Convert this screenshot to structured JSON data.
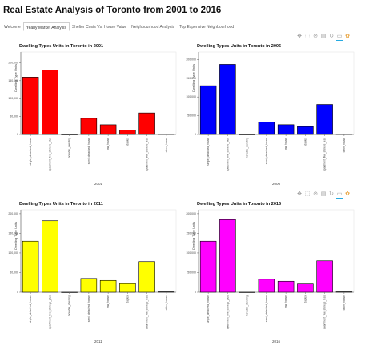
{
  "page_title": "Real Estate Analysis of Toronto from 2001 to 2016",
  "tabs": [
    {
      "label": "Welcome",
      "active": false
    },
    {
      "label": "Yearly Market Analysis",
      "active": true
    },
    {
      "label": "Shelter Costs Vs. House Value",
      "active": false
    },
    {
      "label": "Neighbourhood Analysis",
      "active": false
    },
    {
      "label": "Top Expensive Neighbourhood",
      "active": false
    }
  ],
  "toolbar_icons": [
    "pan-icon",
    "box-zoom-icon",
    "wheel-zoom-icon",
    "save-icon",
    "reset-icon",
    "hover-icon",
    "bokeh-logo-icon"
  ],
  "chart_data": [
    {
      "type": "bar",
      "title": "Dwelling Types Units in Toronto in 2001",
      "xlabel": "2001",
      "ylabel": "Dwelling Type Units",
      "color": "#ff0000",
      "ylim": [
        0,
        230000
      ],
      "ytick_labels": [
        "0",
        "50,000",
        "100,000",
        "150,000",
        "200,000"
      ],
      "categories": [
        "single_detached_house",
        "apartment_five_storeys_plus",
        "movable_dwelling",
        "semi_detached_house",
        "row_house",
        "duplex",
        "apartment_five_storeys_less",
        "other_house"
      ],
      "values": [
        160000,
        180000,
        0,
        45000,
        27000,
        12000,
        60000,
        1000
      ]
    },
    {
      "type": "bar",
      "title": "Dwelling Types Units in Toronto in 2006",
      "xlabel": "2006",
      "ylabel": "Dwelling Type Units",
      "color": "#0000ff",
      "ylim": [
        0,
        220000
      ],
      "ytick_labels": [
        "0",
        "50,000",
        "100,000",
        "150,000",
        "200,000"
      ],
      "categories": [
        "single_detached_house",
        "apartment_five_storeys_plus",
        "movable_dwelling",
        "semi_detached_house",
        "row_house",
        "duplex",
        "apartment_five_storeys_less",
        "other_house"
      ],
      "values": [
        130000,
        187000,
        0,
        33000,
        26000,
        21000,
        80000,
        1000
      ]
    },
    {
      "type": "bar",
      "title": "Dwelling Types Units in Toronto in 2011",
      "xlabel": "2011",
      "ylabel": "Dwelling Type Units",
      "color": "#ffff00",
      "ylim": [
        0,
        210000
      ],
      "ytick_labels": [
        "0",
        "50,000",
        "100,000",
        "150,000",
        "200,000"
      ],
      "categories": [
        "single_detached_house",
        "apartment_five_storeys_plus",
        "movable_dwelling",
        "semi_detached_house",
        "row_house",
        "duplex",
        "apartment_five_storeys_less",
        "other_house"
      ],
      "values": [
        130000,
        182000,
        0,
        35000,
        30000,
        22000,
        78000,
        1000
      ]
    },
    {
      "type": "bar",
      "title": "Dwelling Types Units in Toronto in 2016",
      "xlabel": "2016",
      "ylabel": "Dwelling Type Units",
      "color": "#ff00ff",
      "ylim": [
        0,
        210000
      ],
      "ytick_labels": [
        "0",
        "50,000",
        "100,000",
        "150,000",
        "200,000"
      ],
      "categories": [
        "single_detached_house",
        "apartment_five_storeys_plus",
        "movable_dwelling",
        "semi_detached_house",
        "row_house",
        "duplex",
        "apartment_five_storeys_less",
        "other_house"
      ],
      "values": [
        130000,
        185000,
        0,
        33000,
        28000,
        21000,
        80000,
        1000
      ]
    }
  ]
}
